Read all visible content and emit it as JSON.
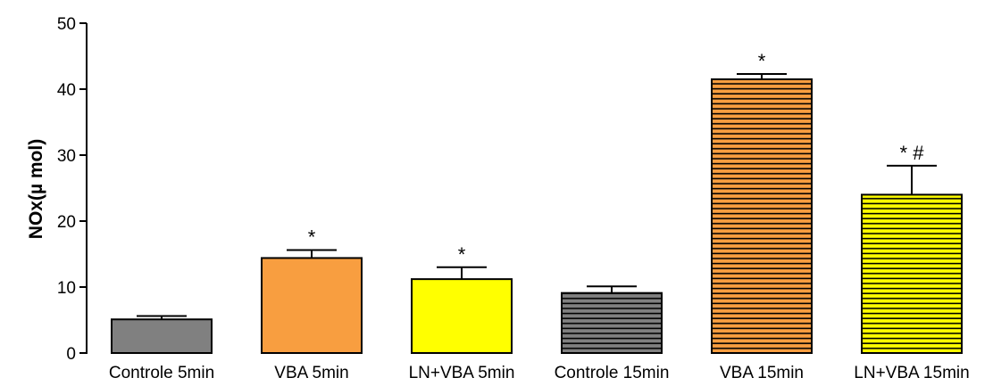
{
  "chart_data": {
    "type": "bar",
    "title": "",
    "xlabel": "",
    "ylabel": "NOx(µ mol)",
    "ylim": [
      0,
      50
    ],
    "yticks": [
      0,
      10,
      20,
      30,
      40,
      50
    ],
    "grid": false,
    "categories": [
      "Controle 5min",
      "VBA 5min",
      "LN+VBA 5min",
      "Controle 15min",
      "VBA 15min",
      "LN+VBA 15min"
    ],
    "values": [
      5.1,
      14.4,
      11.2,
      9.1,
      41.5,
      24.0
    ],
    "errors": [
      0.5,
      1.2,
      1.8,
      1.0,
      0.8,
      4.4
    ],
    "annotations": [
      "",
      "*",
      "*",
      "",
      "*",
      "* #"
    ],
    "fills": [
      {
        "color": "#808080",
        "pattern": "solid"
      },
      {
        "color": "#f89e40",
        "pattern": "solid"
      },
      {
        "color": "#ffff00",
        "pattern": "solid"
      },
      {
        "color": "#808080",
        "pattern": "hstripes"
      },
      {
        "color": "#f89e40",
        "pattern": "hstripes"
      },
      {
        "color": "#ffff00",
        "pattern": "hstripes"
      }
    ]
  }
}
